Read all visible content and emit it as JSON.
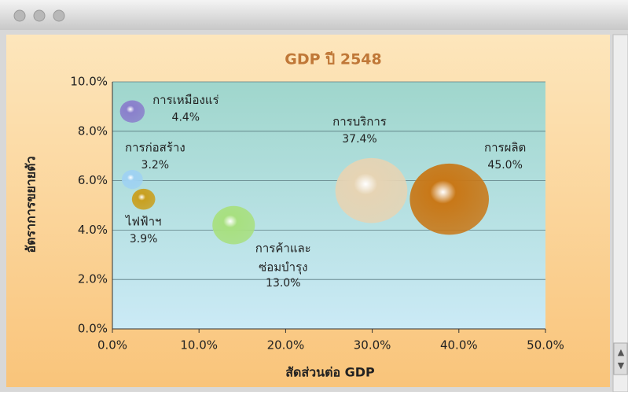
{
  "chart_data": {
    "type": "bubble",
    "title": "GDP ปี 2548",
    "x_label": "สัดส่วนต่อ GDP",
    "y_label": "อัตราการขยายตัว",
    "xlim": [
      0,
      50
    ],
    "xticks": [
      {
        "value": 0,
        "label": "0.0%"
      },
      {
        "value": 10,
        "label": "10.0%"
      },
      {
        "value": 20,
        "label": "20.0%"
      },
      {
        "value": 30,
        "label": "30.0%"
      },
      {
        "value": 40,
        "label": "40.0%"
      },
      {
        "value": 50,
        "label": "50.0%"
      }
    ],
    "ylim": [
      0,
      10
    ],
    "yticks": [
      {
        "value": 0,
        "label": "0.0%"
      },
      {
        "value": 2,
        "label": "2.0%"
      },
      {
        "value": 4,
        "label": "4.0%"
      },
      {
        "value": 6,
        "label": "6.0%"
      },
      {
        "value": 8,
        "label": "8.0%"
      },
      {
        "value": 10,
        "label": "10.0%"
      }
    ],
    "grid": true,
    "series": [
      {
        "name": [
          "การเหมืองแร่"
        ],
        "color": "#8a80cc",
        "x": 2.3,
        "y": 8.8,
        "size": 4.4,
        "value_label": "4.4%"
      },
      {
        "name": [
          "การก่อสร้าง"
        ],
        "color": "#9fd2f2",
        "x": 2.3,
        "y": 6.05,
        "size": 3.2,
        "value_label": "3.2%"
      },
      {
        "name": [
          "ไฟฟ้าฯ"
        ],
        "color": "#c9a020",
        "x": 3.6,
        "y": 5.25,
        "size": 3.9,
        "value_label": "3.9%"
      },
      {
        "name": [
          "การค้าและ",
          "ซ่อมบำรุง"
        ],
        "color": "#a8e080",
        "x": 14.0,
        "y": 4.2,
        "size": 13.0,
        "value_label": "13.0%"
      },
      {
        "name": [
          "การบริการ"
        ],
        "color": "#e6d4b4",
        "x": 29.9,
        "y": 5.6,
        "size": 37.4,
        "value_label": "37.4%"
      },
      {
        "name": [
          "การผลิต"
        ],
        "color": "#c87818",
        "x": 38.9,
        "y": 5.25,
        "size": 45.0,
        "value_label": "45.0%"
      }
    ]
  }
}
